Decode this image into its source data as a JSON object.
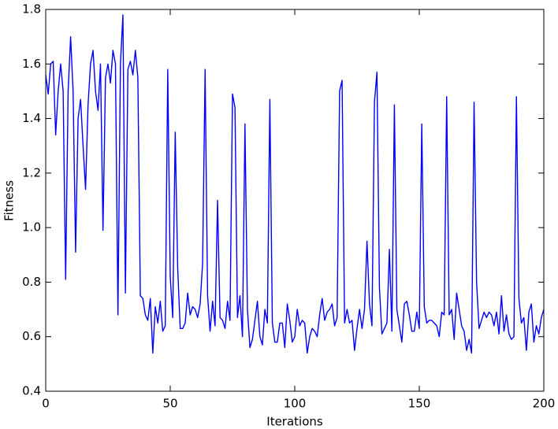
{
  "chart_data": {
    "type": "line",
    "x_label": "Iterations",
    "y_label": "Fitness",
    "color": "#0000ff",
    "x": [
      0,
      1,
      2,
      3,
      4,
      5,
      6,
      7,
      8,
      9,
      10,
      11,
      12,
      13,
      14,
      15,
      16,
      17,
      18,
      19,
      20,
      21,
      22,
      23,
      24,
      25,
      26,
      27,
      28,
      29,
      30,
      31,
      32,
      33,
      34,
      35,
      36,
      37,
      38,
      39,
      40,
      41,
      42,
      43,
      44,
      45,
      46,
      47,
      48,
      49,
      50,
      51,
      52,
      53,
      54,
      55,
      56,
      57,
      58,
      59,
      60,
      61,
      62,
      63,
      64,
      65,
      66,
      67,
      68,
      69,
      70,
      71,
      72,
      73,
      74,
      75,
      76,
      77,
      78,
      79,
      80,
      81,
      82,
      83,
      84,
      85,
      86,
      87,
      88,
      89,
      90,
      91,
      92,
      93,
      94,
      95,
      96,
      97,
      98,
      99,
      100,
      101,
      102,
      103,
      104,
      105,
      106,
      107,
      108,
      109,
      110,
      111,
      112,
      113,
      114,
      115,
      116,
      117,
      118,
      119,
      120,
      121,
      122,
      123,
      124,
      125,
      126,
      127,
      128,
      129,
      130,
      131,
      132,
      133,
      134,
      135,
      136,
      137,
      138,
      139,
      140,
      141,
      142,
      143,
      144,
      145,
      146,
      147,
      148,
      149,
      150,
      151,
      152,
      153,
      154,
      155,
      156,
      157,
      158,
      159,
      160,
      161,
      162,
      163,
      164,
      165,
      166,
      167,
      168,
      169,
      170,
      171,
      172,
      173,
      174,
      175,
      176,
      177,
      178,
      179,
      180,
      181,
      182,
      183,
      184,
      185,
      186,
      187,
      188,
      189,
      190,
      191,
      192,
      193,
      194,
      195,
      196,
      197,
      198,
      199,
      200
    ],
    "values": [
      1.56,
      1.49,
      1.6,
      1.61,
      1.34,
      1.5,
      1.6,
      1.5,
      0.81,
      1.5,
      1.7,
      1.5,
      0.91,
      1.4,
      1.47,
      1.3,
      1.14,
      1.45,
      1.6,
      1.65,
      1.5,
      1.43,
      1.6,
      0.99,
      1.55,
      1.6,
      1.53,
      1.65,
      1.6,
      0.68,
      1.6,
      1.78,
      0.76,
      1.58,
      1.61,
      1.56,
      1.65,
      1.55,
      0.75,
      0.74,
      0.68,
      0.66,
      0.74,
      0.54,
      0.71,
      0.65,
      0.73,
      0.62,
      0.64,
      1.58,
      0.82,
      0.67,
      1.35,
      0.85,
      0.63,
      0.63,
      0.65,
      0.76,
      0.68,
      0.71,
      0.7,
      0.67,
      0.72,
      0.87,
      1.58,
      0.75,
      0.62,
      0.73,
      0.64,
      1.1,
      0.67,
      0.66,
      0.63,
      0.73,
      0.66,
      1.49,
      1.44,
      0.67,
      0.75,
      0.6,
      1.38,
      0.7,
      0.56,
      0.59,
      0.66,
      0.73,
      0.6,
      0.57,
      0.7,
      0.65,
      1.47,
      0.65,
      0.58,
      0.58,
      0.65,
      0.65,
      0.56,
      0.72,
      0.66,
      0.58,
      0.6,
      0.7,
      0.64,
      0.66,
      0.65,
      0.54,
      0.6,
      0.63,
      0.62,
      0.6,
      0.68,
      0.74,
      0.66,
      0.69,
      0.7,
      0.72,
      0.64,
      0.67,
      1.5,
      1.54,
      0.65,
      0.7,
      0.65,
      0.66,
      0.55,
      0.63,
      0.7,
      0.63,
      0.7,
      0.95,
      0.72,
      0.64,
      1.46,
      1.57,
      0.78,
      0.61,
      0.63,
      0.65,
      0.92,
      0.62,
      1.45,
      0.7,
      0.64,
      0.58,
      0.72,
      0.73,
      0.68,
      0.62,
      0.62,
      0.69,
      0.63,
      1.38,
      0.71,
      0.65,
      0.66,
      0.66,
      0.65,
      0.64,
      0.6,
      0.69,
      0.68,
      1.48,
      0.68,
      0.7,
      0.59,
      0.76,
      0.7,
      0.64,
      0.62,
      0.55,
      0.59,
      0.54,
      1.46,
      0.8,
      0.63,
      0.66,
      0.69,
      0.67,
      0.69,
      0.68,
      0.64,
      0.69,
      0.61,
      0.75,
      0.62,
      0.68,
      0.61,
      0.59,
      0.6,
      1.48,
      0.74,
      0.65,
      0.67,
      0.55,
      0.69,
      0.72,
      0.58,
      0.64,
      0.61,
      0.67,
      0.7
    ],
    "xlim": [
      0,
      200
    ],
    "xticks": [
      0,
      50,
      100,
      150,
      200
    ],
    "ylim": [
      0.4,
      1.8
    ],
    "yticks": [
      0.4,
      0.6,
      0.8,
      {
        "value": 1,
        "label": "1.0"
      },
      1.2,
      1.4,
      1.6,
      1.8
    ],
    "grid": false
  }
}
